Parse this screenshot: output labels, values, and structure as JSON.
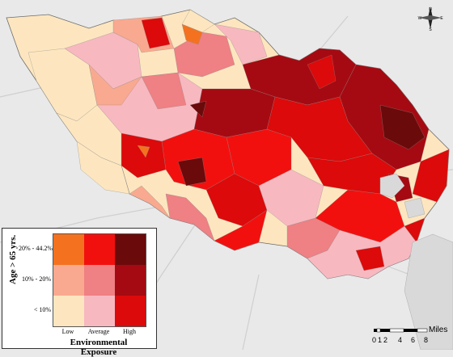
{
  "legend": {
    "y_title": "Age > 65 yrs.",
    "y_labels": [
      "20% - 44.2%",
      "10% - 20%",
      "< 10%"
    ],
    "x_labels": [
      "Low",
      "Average",
      "High"
    ],
    "x_title": "Environmental Exposure",
    "colors": [
      [
        "#f4721f",
        "#f2100f",
        "#6b0a0a"
      ],
      [
        "#f9a98f",
        "#ef8083",
        "#a50a12"
      ],
      [
        "#fde6bf",
        "#f8b8c0",
        "#dc0a0a"
      ]
    ]
  },
  "scale": {
    "unit": "Miles",
    "ticks": [
      "0",
      "1",
      "2",
      "4",
      "6",
      "8"
    ]
  },
  "compass": {
    "north": "N",
    "south": "S",
    "east": "E",
    "west": "W"
  },
  "palette": {
    "background": "#e9e9e9",
    "road": "#c9c9c9",
    "boundary": "#6b6b6b"
  }
}
